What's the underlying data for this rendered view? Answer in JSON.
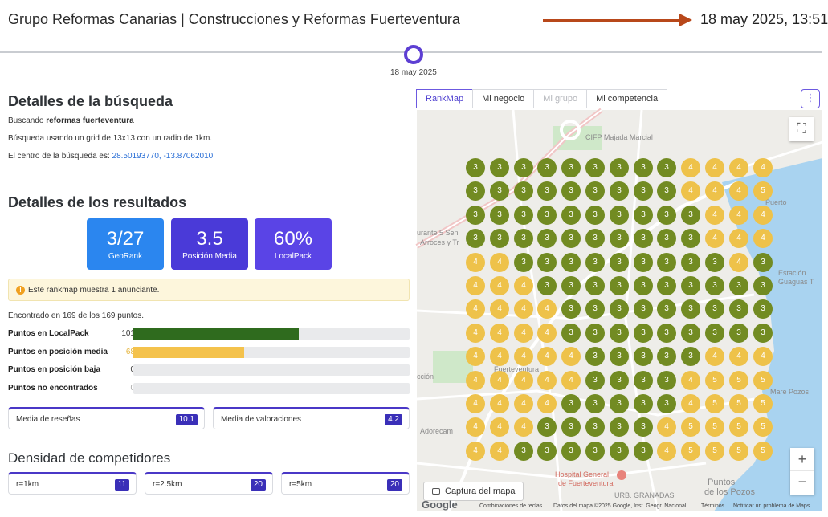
{
  "header": {
    "title": "Grupo Reformas Canarias | Construcciones y Reformas Fuerteventura",
    "datetime": "18 may 2025, 13:51",
    "timeline_date": "18 may 2025",
    "arrow_color": "#b8481a"
  },
  "search": {
    "heading": "Detalles de la búsqueda",
    "searching_prefix": "Buscando ",
    "keyword": "reformas fuerteventura",
    "grid_text": "Búsqueda usando un grid de 13x13 con un radio de 1km.",
    "center_prefix": "El centro de la búsqueda es: ",
    "center_coords": "28.50193770, -13.87062010"
  },
  "results": {
    "heading": "Detalles de los resultados",
    "stats": [
      {
        "value": "3/27",
        "label": "GeoRank",
        "color": "#2b86ef"
      },
      {
        "value": "3.5",
        "label": "Posición Media",
        "color": "#4a3ad8"
      },
      {
        "value": "60%",
        "label": "LocalPack",
        "color": "#5a44e6"
      }
    ],
    "alert": "Este rankmap muestra 1 anunciante.",
    "found_text": "Encontrado en 169 de los 169 puntos.",
    "rows": [
      {
        "label": "Puntos en LocalPack",
        "count": "101",
        "fraction": 0.6,
        "color": "#2f6b1e"
      },
      {
        "label": "Puntos en posición media",
        "count": "68",
        "fraction": 0.4,
        "color": "#f4c24c"
      },
      {
        "label": "Puntos en posición baja",
        "count": "0",
        "fraction": 0,
        "color": "#e9eaec"
      },
      {
        "label": "Puntos no encontrados",
        "count": "0",
        "fraction": 0,
        "color": "#e9eaec"
      }
    ],
    "reviews_label": "Media de reseñas",
    "reviews_value": "10.1",
    "ratings_label": "Media de valoraciones",
    "ratings_value": "4.2"
  },
  "density": {
    "heading": "Densidad de competidores",
    "items": [
      {
        "label": "r=1km",
        "value": "11"
      },
      {
        "label": "r=2.5km",
        "value": "20"
      },
      {
        "label": "r=5km",
        "value": "20"
      }
    ]
  },
  "map": {
    "tabs": [
      {
        "label": "RankMap",
        "state": "active"
      },
      {
        "label": "Mi negocio",
        "state": "normal"
      },
      {
        "label": "Mi grupo",
        "state": "disabled"
      },
      {
        "label": "Mi competencia",
        "state": "normal"
      }
    ],
    "kebab": "⋮",
    "fullscreen_icon": "⛶",
    "zoom_in": "+",
    "zoom_out": "−",
    "capture_label": "Captura del mapa",
    "google": "Google",
    "attribution": {
      "shortcuts": "Combinaciones de teclas",
      "data": "Datos del mapa ©2025 Google, Inst. Geogr. Nacional",
      "terms": "Términos",
      "report": "Notificar un problema de Maps"
    },
    "labels": {
      "cifp": "CIFP Majada Marcial",
      "hospital": "Hospital General",
      "hospital2": "de Fuerteventura",
      "urb": "URB. GRANADAS",
      "puntos": "Puntos",
      "pozos": "de los Pozos",
      "puerto": "Puerto",
      "estacion": "Estación",
      "guaguas": "Guaguas T",
      "mare": "Mare Pozos",
      "fuerteventura": "Fuerteventura",
      "ccion": "cción",
      "aurante": "urante 5 Sen",
      "arroces": "Arroces y Tr",
      "adorecam": "Adorecam"
    },
    "colors": {
      "dark": "#728b22",
      "light": "#eec24a"
    },
    "grid": [
      [
        3,
        3,
        3,
        3,
        3,
        3,
        3,
        3,
        3,
        4,
        4,
        4,
        4
      ],
      [
        3,
        3,
        3,
        3,
        3,
        3,
        3,
        3,
        3,
        4,
        4,
        4,
        5
      ],
      [
        3,
        3,
        3,
        3,
        3,
        3,
        3,
        3,
        3,
        3,
        4,
        4,
        4
      ],
      [
        3,
        3,
        3,
        3,
        3,
        3,
        3,
        3,
        3,
        3,
        4,
        4,
        4
      ],
      [
        4,
        4,
        3,
        3,
        3,
        3,
        3,
        3,
        3,
        3,
        3,
        4,
        3
      ],
      [
        4,
        4,
        4,
        3,
        3,
        3,
        3,
        3,
        3,
        3,
        3,
        3,
        3
      ],
      [
        4,
        4,
        4,
        4,
        3,
        3,
        3,
        3,
        3,
        3,
        3,
        3,
        3
      ],
      [
        4,
        4,
        4,
        4,
        3,
        3,
        3,
        3,
        3,
        3,
        3,
        3,
        3
      ],
      [
        4,
        4,
        4,
        4,
        4,
        3,
        3,
        3,
        3,
        3,
        4,
        4,
        4
      ],
      [
        4,
        4,
        4,
        4,
        4,
        3,
        3,
        3,
        3,
        4,
        5,
        5,
        5
      ],
      [
        4,
        4,
        4,
        4,
        3,
        3,
        3,
        3,
        3,
        4,
        5,
        5,
        5
      ],
      [
        4,
        4,
        4,
        3,
        3,
        3,
        3,
        3,
        4,
        5,
        5,
        5,
        5
      ],
      [
        4,
        4,
        3,
        3,
        3,
        3,
        3,
        3,
        4,
        5,
        5,
        5,
        5
      ]
    ],
    "dark_threshold": 3
  }
}
